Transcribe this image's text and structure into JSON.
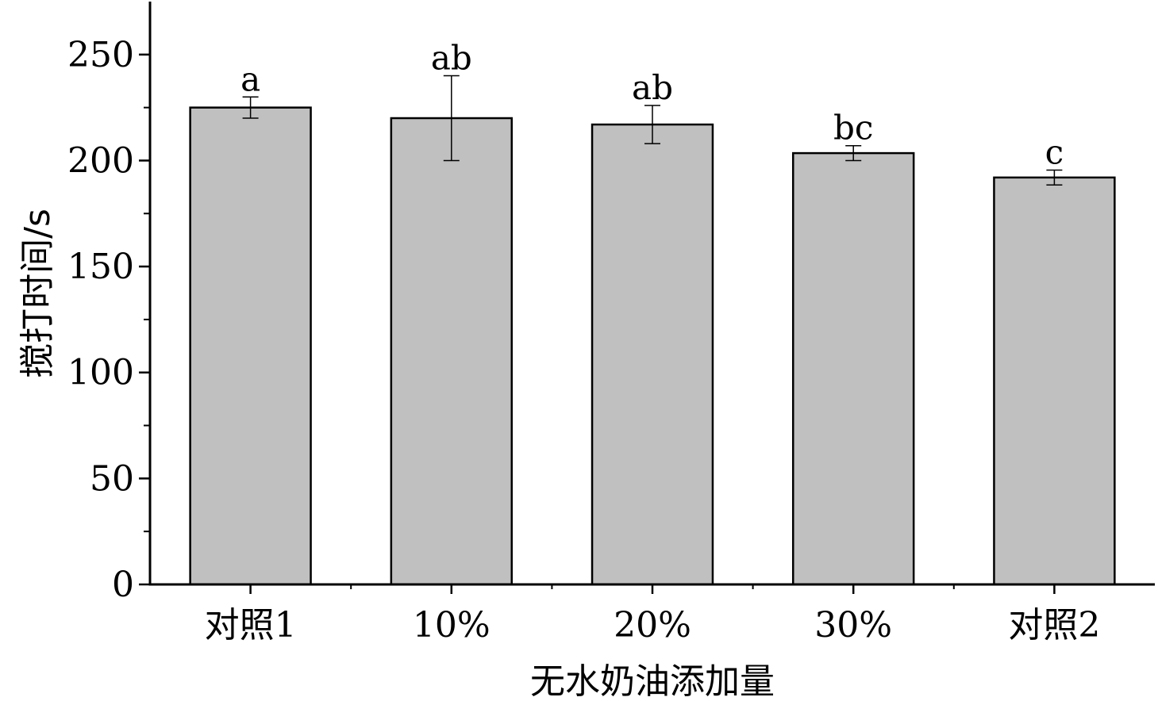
{
  "chart_data": {
    "type": "bar",
    "title": "",
    "xlabel": "无水奶油添加量",
    "ylabel": "搅打时间/s",
    "categories": [
      "对照1",
      "10%",
      "20%",
      "30%",
      "对照2"
    ],
    "values": [
      225,
      220,
      217,
      203.5,
      192
    ],
    "errors": [
      5,
      20,
      9,
      3.5,
      3.5
    ],
    "significance": [
      "a",
      "ab",
      "ab",
      "bc",
      "c"
    ],
    "ylim": [
      0,
      275
    ],
    "yticks": [
      0,
      50,
      100,
      150,
      200,
      250
    ],
    "grid": false,
    "legend": "none",
    "colors": {
      "bar_fill": "#c0c0c0",
      "bar_stroke": "#000000",
      "axis": "#000000"
    }
  }
}
